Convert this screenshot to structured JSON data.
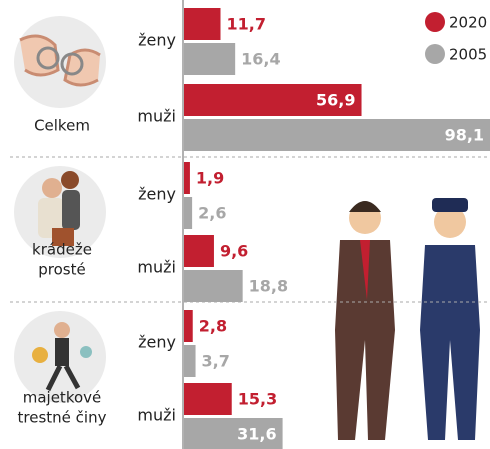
{
  "chart_data": {
    "type": "bar",
    "orientation": "horizontal",
    "groups": [
      {
        "label": [
          "Celkem"
        ]
      },
      {
        "label": [
          "krádeže",
          "prosté"
        ]
      },
      {
        "label": [
          "majetkové",
          "trestné činy"
        ]
      }
    ],
    "categories": [
      "ženy",
      "muži",
      "ženy",
      "muži",
      "ženy",
      "muži"
    ],
    "series": [
      {
        "name": "2020",
        "color": "#c21f30",
        "values": [
          11.7,
          56.9,
          1.9,
          9.6,
          2.8,
          15.3
        ],
        "value_labels": [
          "11,7",
          "56,9",
          "1,9",
          "9,6",
          "2,8",
          "15,3"
        ]
      },
      {
        "name": "2005",
        "color": "#a7a7a7",
        "values": [
          16.4,
          98.1,
          2.6,
          18.8,
          3.7,
          31.6
        ],
        "value_labels": [
          "16,4",
          "98,1",
          "2,6",
          "18,8",
          "3,7",
          "31,6"
        ]
      }
    ]
  }
}
